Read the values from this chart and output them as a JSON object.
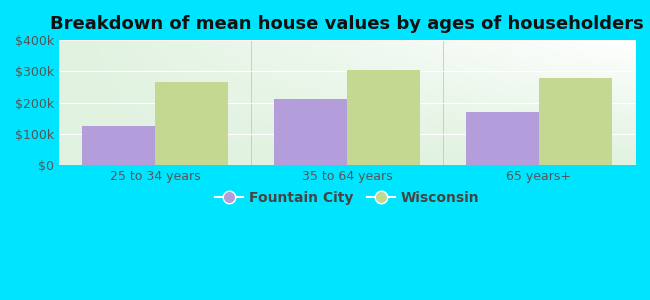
{
  "title": "Breakdown of mean house values by ages of householders",
  "categories": [
    "25 to 34 years",
    "35 to 64 years",
    "65 years+"
  ],
  "fountain_city_values": [
    125000,
    210000,
    170000
  ],
  "wisconsin_values": [
    265000,
    305000,
    280000
  ],
  "fountain_city_color": "#b39ddb",
  "wisconsin_color": "#c5d891",
  "ylim": [
    0,
    400000
  ],
  "yticks": [
    0,
    100000,
    200000,
    300000,
    400000
  ],
  "ytick_labels": [
    "$0",
    "$100k",
    "$200k",
    "$300k",
    "$400k"
  ],
  "bar_width": 0.38,
  "background_color": "#00e5ff",
  "legend_labels": [
    "Fountain City",
    "Wisconsin"
  ],
  "title_fontsize": 13,
  "tick_fontsize": 9,
  "legend_fontsize": 10
}
